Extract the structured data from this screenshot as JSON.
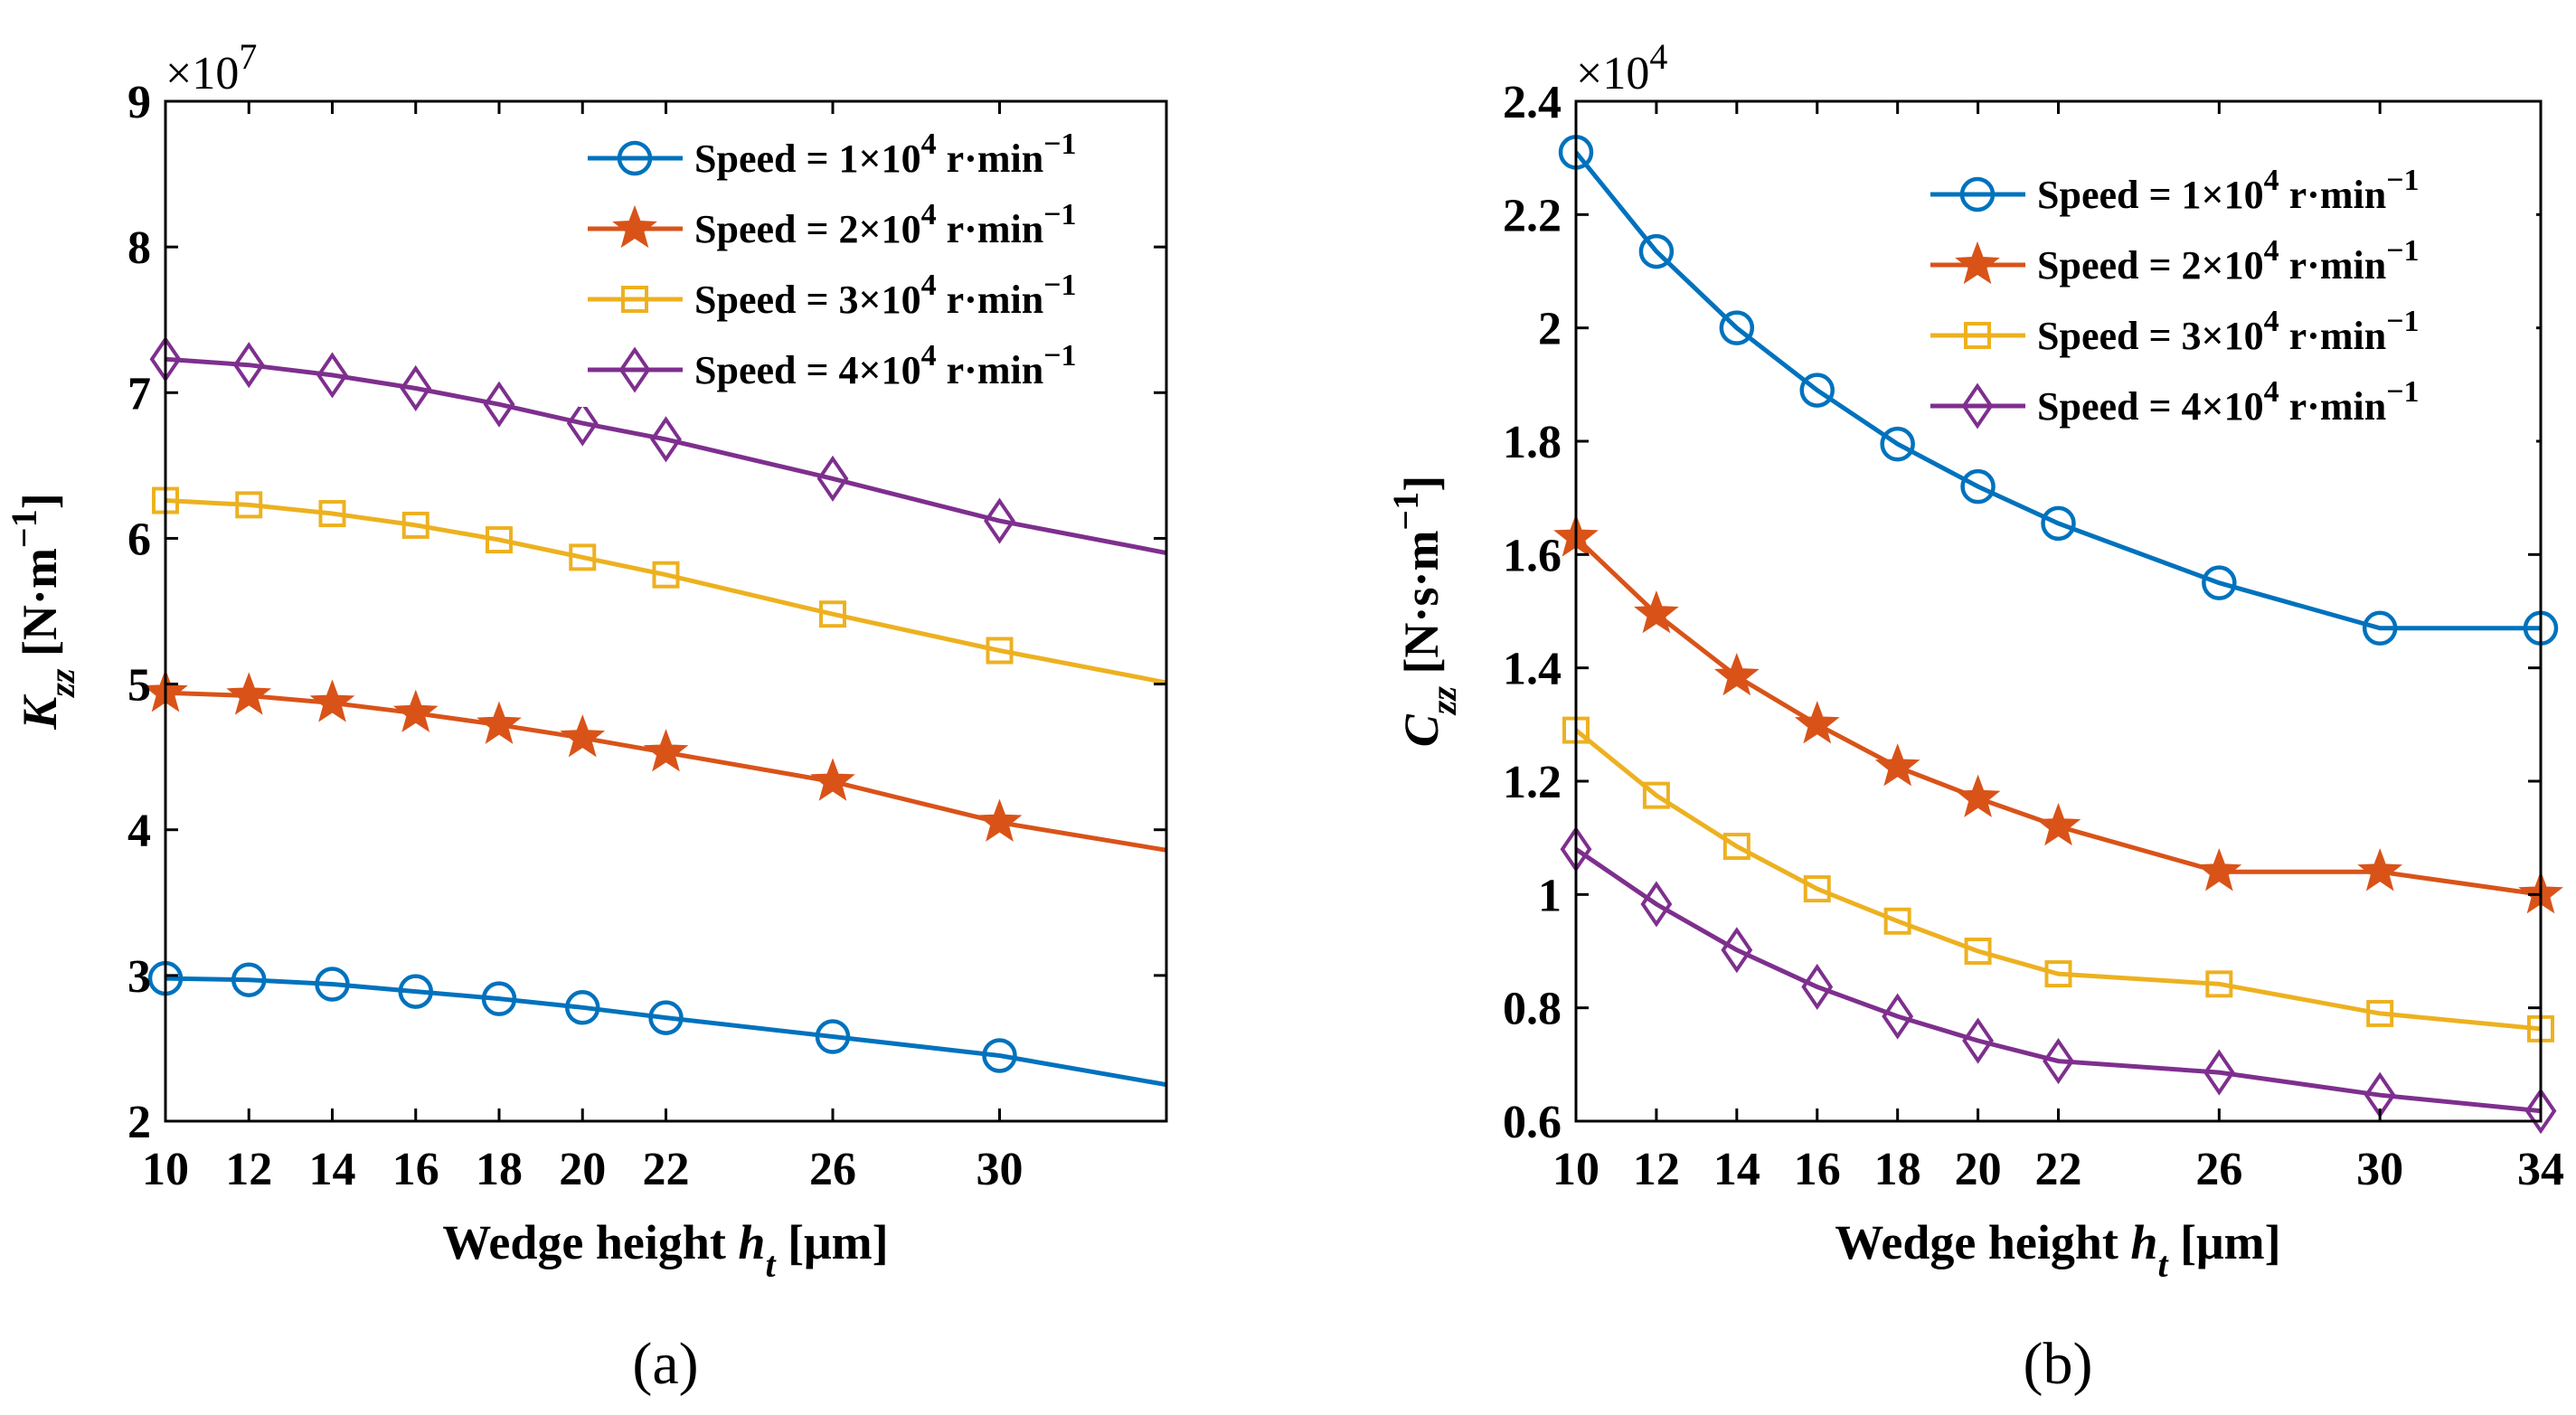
{
  "chart_data": [
    {
      "type": "line",
      "panel_label": "(a)",
      "exponent_label": "×10",
      "exponent_power": "7",
      "xlabel": "Wedge height",
      "xlabel_var": "h",
      "xlabel_sub": "t",
      "xlabel_unit": "[μm]",
      "ylabel_var": "K",
      "ylabel_sub": "zz",
      "ylabel_unit": "[N·m",
      "ylabel_power": "−1",
      "ylabel_close": "]",
      "xlim": [
        10,
        34
      ],
      "ylim": [
        2,
        9
      ],
      "xticks": [
        10,
        12,
        14,
        16,
        18,
        20,
        22,
        26,
        30
      ],
      "yticks": [
        2,
        3,
        4,
        5,
        6,
        7,
        8,
        9
      ],
      "xtick_labels": [
        "10",
        "12",
        "14",
        "16",
        "18",
        "20",
        "22",
        "26",
        "30"
      ],
      "ytick_labels": [
        "2",
        "3",
        "4",
        "5",
        "6",
        "7",
        "8",
        "9"
      ],
      "legend_position": "top-right",
      "x": [
        10,
        12,
        14,
        16,
        18,
        20,
        22,
        26,
        30,
        34
      ],
      "series": [
        {
          "name": "Speed = 1×10^4 r·min^−1",
          "label_main": "Speed = 1×10",
          "label_pow": "4",
          "label_unit": " r·min",
          "label_unit_pow": "−1",
          "color": "#0072BD",
          "marker": "circle",
          "values": [
            2.98,
            2.97,
            2.94,
            2.89,
            2.84,
            2.78,
            2.71,
            2.58,
            2.45,
            2.25
          ]
        },
        {
          "name": "Speed = 2×10^4 r·min^−1",
          "label_main": "Speed = 2×10",
          "label_pow": "4",
          "label_unit": " r·min",
          "label_unit_pow": "−1",
          "color": "#D95319",
          "marker": "star",
          "values": [
            4.94,
            4.92,
            4.87,
            4.8,
            4.72,
            4.63,
            4.53,
            4.33,
            4.05,
            3.86
          ]
        },
        {
          "name": "Speed = 3×10^4 r·min^−1",
          "label_main": "Speed = 3×10",
          "label_pow": "4",
          "label_unit": " r·min",
          "label_unit_pow": "−1",
          "color": "#EDB120",
          "marker": "square",
          "values": [
            6.26,
            6.23,
            6.17,
            6.09,
            5.99,
            5.87,
            5.75,
            5.48,
            5.23,
            5.01
          ]
        },
        {
          "name": "Speed = 4×10^4 r·min^−1",
          "label_main": "Speed = 4×10",
          "label_pow": "4",
          "label_unit": " r·min",
          "label_unit_pow": "−1",
          "color": "#7E2F8E",
          "marker": "diamond",
          "values": [
            7.23,
            7.19,
            7.12,
            7.03,
            6.92,
            6.79,
            6.68,
            6.41,
            6.12,
            5.9
          ]
        }
      ]
    },
    {
      "type": "line",
      "panel_label": "(b)",
      "exponent_label": "×10",
      "exponent_power": "4",
      "xlabel": "Wedge height",
      "xlabel_var": "h",
      "xlabel_sub": "t",
      "xlabel_unit": "[μm]",
      "ylabel_var": "C",
      "ylabel_sub": "zz",
      "ylabel_unit": "[N·s·m",
      "ylabel_power": "−1",
      "ylabel_close": "]",
      "xlim": [
        10,
        34
      ],
      "ylim": [
        0.6,
        2.4
      ],
      "xticks": [
        10,
        12,
        14,
        16,
        18,
        20,
        22,
        26,
        30,
        34
      ],
      "yticks": [
        0.6,
        0.8,
        1.0,
        1.2,
        1.4,
        1.6,
        1.8,
        2.0,
        2.2,
        2.4
      ],
      "xtick_labels": [
        "10",
        "12",
        "14",
        "16",
        "18",
        "20",
        "22",
        "26",
        "30",
        "34"
      ],
      "ytick_labels": [
        "0.6",
        "0.8",
        "1",
        "1.2",
        "1.4",
        "1.6",
        "1.8",
        "2",
        "2.2",
        "2.4"
      ],
      "legend_position": "top-right",
      "x": [
        10,
        12,
        14,
        16,
        18,
        20,
        22,
        26,
        30,
        34
      ],
      "series": [
        {
          "name": "Speed = 1×10^4 r·min^−1",
          "label_main": "Speed = 1×10",
          "label_pow": "4",
          "label_unit": " r·min",
          "label_unit_pow": "−1",
          "color": "#0072BD",
          "marker": "circle",
          "values": [
            2.31,
            2.135,
            2.0,
            1.89,
            1.795,
            1.72,
            1.655,
            1.55,
            1.47,
            1.47
          ]
        },
        {
          "name": "Speed = 2×10^4 r·min^−1",
          "label_main": "Speed = 2×10",
          "label_pow": "4",
          "label_unit": " r·min",
          "label_unit_pow": "−1",
          "color": "#D95319",
          "marker": "star",
          "values": [
            1.63,
            1.495,
            1.385,
            1.3,
            1.225,
            1.17,
            1.12,
            1.04,
            1.04,
            1.0
          ]
        },
        {
          "name": "Speed = 3×10^4 r·min^−1",
          "label_main": "Speed = 3×10",
          "label_pow": "4",
          "label_unit": " r·min",
          "label_unit_pow": "−1",
          "color": "#EDB120",
          "marker": "square",
          "values": [
            1.29,
            1.175,
            1.085,
            1.01,
            0.953,
            0.9,
            0.86,
            0.842,
            0.79,
            0.763
          ]
        },
        {
          "name": "Speed = 4×10^4 r·min^−1",
          "label_main": "Speed = 4×10",
          "label_pow": "4",
          "label_unit": " r·min",
          "label_unit_pow": "−1",
          "color": "#7E2F8E",
          "marker": "diamond",
          "values": [
            1.08,
            0.983,
            0.902,
            0.837,
            0.785,
            0.742,
            0.706,
            0.686,
            0.646,
            0.618
          ]
        }
      ]
    }
  ]
}
